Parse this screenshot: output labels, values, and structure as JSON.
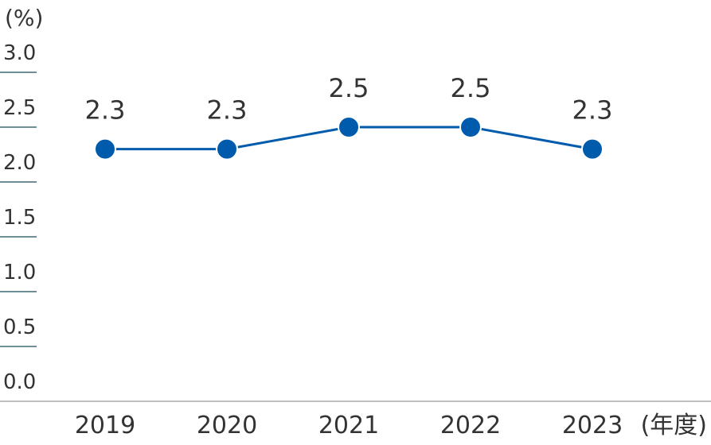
{
  "chart_data": {
    "type": "line",
    "title": "",
    "xlabel": "(年度)",
    "ylabel": "(%)",
    "ylim": [
      0,
      3.0
    ],
    "y_ticks": [
      "0.0",
      "0.5",
      "1.0",
      "1.5",
      "2.0",
      "2.5",
      "3.0"
    ],
    "categories": [
      "2019",
      "2020",
      "2021",
      "2022",
      "2023"
    ],
    "series": [
      {
        "values": [
          2.3,
          2.3,
          2.5,
          2.5,
          2.3
        ],
        "labels": [
          "2.3",
          "2.3",
          "2.5",
          "2.5",
          "2.3"
        ]
      }
    ],
    "grid": false,
    "colors": {
      "line": "#005BAC",
      "marker": "#005BAC",
      "tick_underline": "#6F8F98",
      "axis": "#BFBFBF",
      "text": "#333333"
    }
  }
}
